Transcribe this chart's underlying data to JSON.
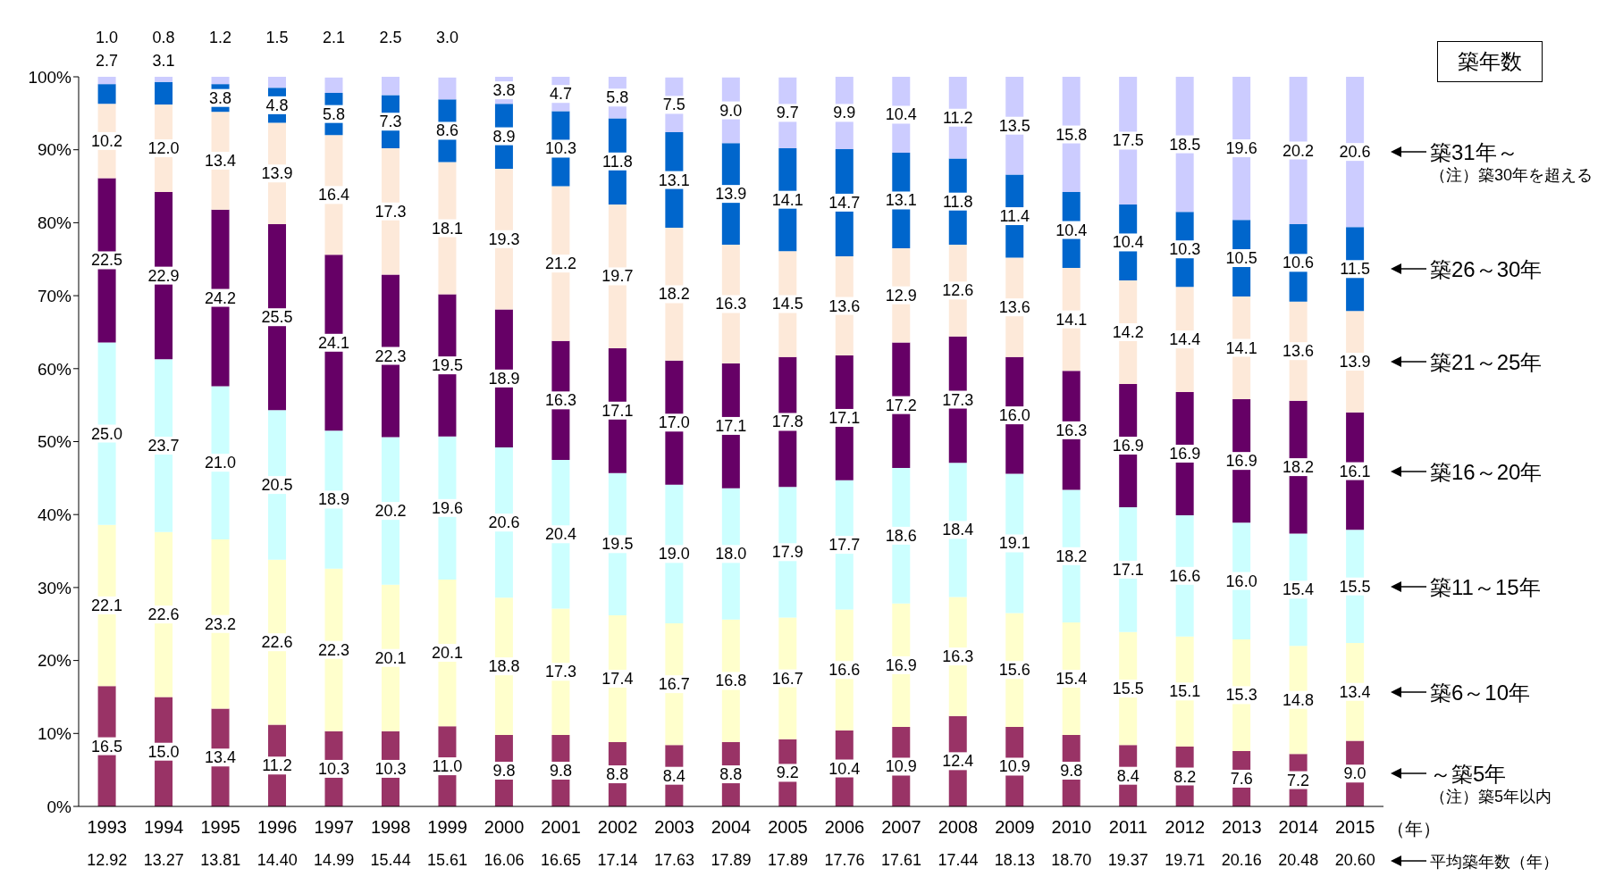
{
  "chart_data": {
    "type": "bar",
    "stacked": true,
    "legend": "right",
    "legend_title": "築年数",
    "xlabel": "（年）",
    "grid": false,
    "categories": [
      "1993",
      "1994",
      "1995",
      "1996",
      "1997",
      "1998",
      "1999",
      "2000",
      "2001",
      "2002",
      "2003",
      "2004",
      "2005",
      "2006",
      "2007",
      "2008",
      "2009",
      "2010",
      "2011",
      "2012",
      "2013",
      "2014",
      "2015"
    ],
    "ylim": [
      0,
      100
    ],
    "yticks": [
      {
        "value": 0,
        "label": "0%"
      },
      {
        "value": 10,
        "label": "10%"
      },
      {
        "value": 20,
        "label": "20%"
      },
      {
        "value": 30,
        "label": "30%"
      },
      {
        "value": 40,
        "label": "40%"
      },
      {
        "value": 50,
        "label": "50%"
      },
      {
        "value": 60,
        "label": "60%"
      },
      {
        "value": 70,
        "label": "70%"
      },
      {
        "value": 80,
        "label": "80%"
      },
      {
        "value": 90,
        "label": "90%"
      },
      {
        "value": 100,
        "label": "100%"
      }
    ],
    "series": [
      {
        "name": "～築5年",
        "color": "#993366",
        "values": [
          16.5,
          15.0,
          13.4,
          11.2,
          10.3,
          10.3,
          11.0,
          9.8,
          9.8,
          8.8,
          8.4,
          8.8,
          9.2,
          10.4,
          10.9,
          12.4,
          10.9,
          9.8,
          8.4,
          8.2,
          7.6,
          7.2,
          9.0
        ],
        "value_labels": [
          "16.5",
          "15.0",
          "13.4",
          "11.2",
          "10.3",
          "10.3",
          "11.0",
          "9.8",
          "9.8",
          "8.8",
          "8.4",
          "8.8",
          "9.2",
          "10.4",
          "10.9",
          "12.4",
          "10.9",
          "9.8",
          "8.4",
          "8.2",
          "7.6",
          "7.2",
          "9.0"
        ]
      },
      {
        "name": "築6～10年",
        "color": "#ffffcc",
        "values": [
          22.1,
          22.6,
          23.2,
          22.6,
          22.3,
          20.1,
          20.1,
          18.8,
          17.3,
          17.4,
          16.7,
          16.8,
          16.7,
          16.6,
          16.9,
          16.3,
          15.6,
          15.4,
          15.5,
          15.1,
          15.3,
          14.8,
          13.4
        ],
        "value_labels": [
          "22.1",
          "22.6",
          "23.2",
          "22.6",
          "22.3",
          "20.1",
          "20.1",
          "18.8",
          "17.3",
          "17.4",
          "16.7",
          "16.8",
          "16.7",
          "16.6",
          "16.9",
          "16.3",
          "15.6",
          "15.4",
          "15.5",
          "15.1",
          "15.3",
          "14.8",
          "13.4"
        ]
      },
      {
        "name": "築11～15年",
        "color": "#ccffff",
        "values": [
          25.0,
          23.7,
          21.0,
          20.5,
          18.9,
          20.2,
          19.6,
          20.6,
          20.4,
          19.5,
          19.0,
          18.0,
          17.9,
          17.7,
          18.6,
          18.4,
          19.1,
          18.2,
          17.1,
          16.6,
          16.0,
          15.4,
          15.5
        ],
        "value_labels": [
          "25.0",
          "23.7",
          "21.0",
          "20.5",
          "18.9",
          "20.2",
          "19.6",
          "20.6",
          "20.4",
          "19.5",
          "19.0",
          "18.0",
          "17.9",
          "17.7",
          "18.6",
          "18.4",
          "19.1",
          "18.2",
          "17.1",
          "16.6",
          "16.0",
          "15.4",
          "15.5"
        ]
      },
      {
        "name": "築16～20年",
        "color": "#660066",
        "values": [
          22.5,
          22.9,
          24.2,
          25.5,
          24.1,
          22.3,
          19.5,
          18.9,
          16.3,
          17.1,
          17.0,
          17.1,
          17.8,
          17.1,
          17.2,
          17.3,
          16.0,
          16.3,
          16.9,
          16.9,
          16.9,
          18.2,
          16.1
        ],
        "value_labels": [
          "22.5",
          "22.9",
          "24.2",
          "25.5",
          "24.1",
          "22.3",
          "19.5",
          "18.9",
          "16.3",
          "17.1",
          "17.0",
          "17.1",
          "17.8",
          "17.1",
          "17.2",
          "17.3",
          "16.0",
          "16.3",
          "16.9",
          "16.9",
          "16.9",
          "18.2",
          "16.1"
        ]
      },
      {
        "name": "築21～25年",
        "color": "#fde9d9",
        "values": [
          10.2,
          12.0,
          13.4,
          13.9,
          16.4,
          17.3,
          18.1,
          19.3,
          21.2,
          19.7,
          18.2,
          16.3,
          14.5,
          13.6,
          12.9,
          12.6,
          13.6,
          14.1,
          14.2,
          14.4,
          14.1,
          13.6,
          13.9
        ],
        "value_labels": [
          "10.2",
          "12.0",
          "13.4",
          "13.9",
          "16.4",
          "17.3",
          "18.1",
          "19.3",
          "21.2",
          "19.7",
          "18.2",
          "16.3",
          "14.5",
          "13.6",
          "12.9",
          "12.6",
          "13.6",
          "14.1",
          "14.2",
          "14.4",
          "14.1",
          "13.6",
          "13.9"
        ]
      },
      {
        "name": "築26～30年",
        "color": "#0066cc",
        "values": [
          2.7,
          3.1,
          3.8,
          4.8,
          5.8,
          7.3,
          8.6,
          8.9,
          10.3,
          11.8,
          13.1,
          13.9,
          14.1,
          14.7,
          13.1,
          11.8,
          11.4,
          10.4,
          10.4,
          10.3,
          10.5,
          10.6,
          11.5
        ],
        "value_labels": [
          "2.7",
          "3.1",
          "3.8",
          "4.8",
          "5.8",
          "7.3",
          "8.6",
          "8.9",
          "10.3",
          "11.8",
          "13.1",
          "13.9",
          "14.1",
          "14.7",
          "13.1",
          "11.8",
          "11.4",
          "10.4",
          "10.4",
          "10.3",
          "10.5",
          "10.6",
          "11.5"
        ]
      },
      {
        "name": "築31年～",
        "color": "#ccccff",
        "values": [
          1.0,
          0.8,
          1.2,
          1.5,
          2.1,
          2.5,
          3.0,
          3.8,
          4.7,
          5.8,
          7.5,
          9.0,
          9.7,
          9.9,
          10.4,
          11.2,
          13.5,
          15.8,
          17.5,
          18.5,
          19.6,
          20.2,
          20.6
        ],
        "value_labels": [
          "1.0",
          "0.8",
          "1.2",
          "1.5",
          "2.1",
          "2.5",
          "3.0",
          "3.8",
          "4.7",
          "5.8",
          "7.5",
          "9.0",
          "9.7",
          "9.9",
          "10.4",
          "11.2",
          "13.5",
          "15.8",
          "17.5",
          "18.5",
          "19.6",
          "20.2",
          "20.6"
        ]
      }
    ],
    "annotations": [
      "（注）築30年を超える",
      "（注）築5年以内",
      "平均築年数（年）",
      "12.92",
      "13.27",
      "13.81",
      "14.40",
      "14.99",
      "15.44",
      "15.61",
      "16.06",
      "16.65",
      "17.14",
      "17.63",
      "17.89",
      "17.89",
      "17.76",
      "17.61",
      "17.44",
      "18.13",
      "18.70",
      "19.37",
      "19.71",
      "20.16",
      "20.48",
      "20.60"
    ]
  }
}
